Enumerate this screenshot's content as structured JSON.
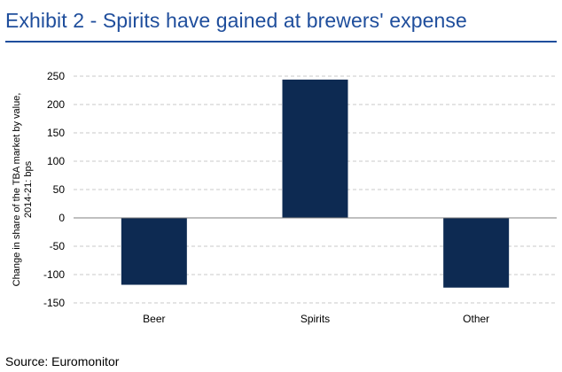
{
  "header": {
    "title": "Exhibit 2 - Spirits have gained at brewers' expense"
  },
  "footer": {
    "source": "Source: Euromonitor"
  },
  "chart_data": {
    "type": "bar",
    "title": "",
    "xlabel": "",
    "ylabel_lines": [
      "Change in share of the TBA market by value,",
      "2014-21: bps"
    ],
    "categories": [
      "Beer",
      "Spirits",
      "Other"
    ],
    "values": [
      -118,
      244,
      -123
    ],
    "ylim": [
      -150,
      250
    ],
    "yticks": [
      250,
      200,
      150,
      100,
      50,
      0,
      -50,
      -100,
      -150
    ],
    "grid": true,
    "bar_color": "#0d2a52"
  }
}
